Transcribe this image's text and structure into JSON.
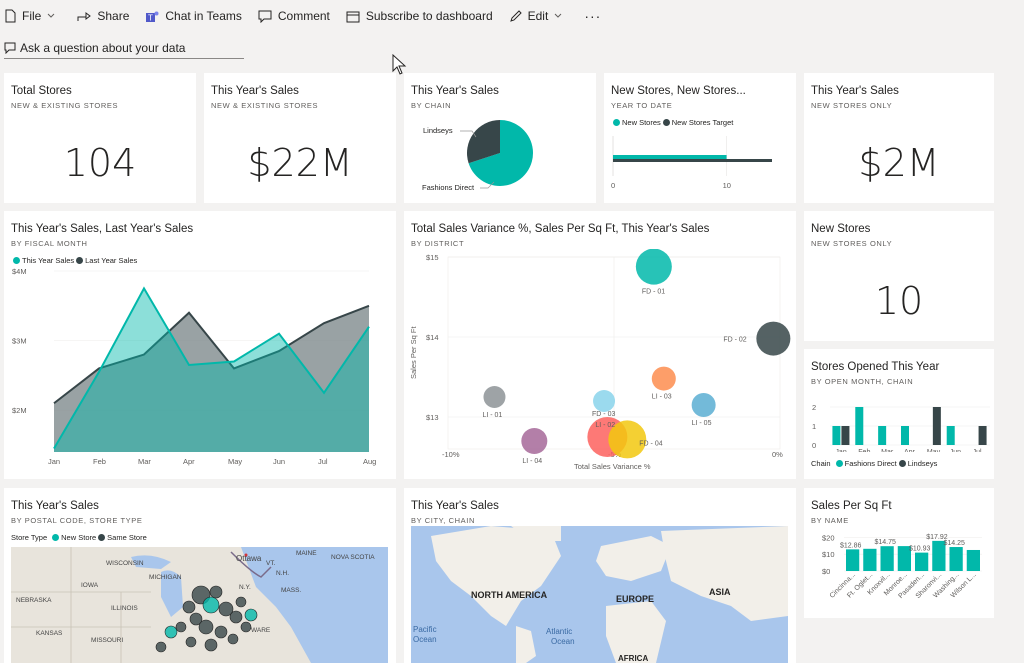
{
  "colors": {
    "teal": "#01b8aa",
    "dark": "#374649",
    "grey": "#8d9397",
    "orange": "#fd8d4f",
    "yellow": "#f2c80f",
    "red": "#fd625e",
    "purple": "#a66999",
    "blue": "#5aaed2",
    "lightblue": "#8ad4eb",
    "ocean": "#a9c6ec"
  },
  "toolbar": {
    "file": "File",
    "share": "Share",
    "teams": "Chat in Teams",
    "comment": "Comment",
    "subscribe": "Subscribe to dashboard",
    "edit": "Edit",
    "more": "···"
  },
  "qa": {
    "placeholder": "Ask a question about your data"
  },
  "tiles": {
    "total_stores": {
      "title": "Total Stores",
      "subtitle": "NEW & EXISTING STORES",
      "value": "104"
    },
    "sales_all": {
      "title": "This Year's Sales",
      "subtitle": "NEW & EXISTING STORES",
      "value": "$22M"
    },
    "sales_chain": {
      "title": "This Year's Sales",
      "subtitle": "BY CHAIN"
    },
    "new_stores_ytd": {
      "title": "New Stores, New Stores...",
      "subtitle": "YEAR TO DATE",
      "legend": [
        "New Stores",
        "New Stores Target"
      ]
    },
    "sales_new": {
      "title": "This Year's Sales",
      "subtitle": "NEW STORES ONLY",
      "value": "$2M"
    },
    "area": {
      "title": "This Year's Sales, Last Year's Sales",
      "subtitle": "BY FISCAL MONTH",
      "legend": [
        "This Year Sales",
        "Last Year Sales"
      ]
    },
    "scatter": {
      "title": "Total Sales Variance %, Sales Per Sq Ft, This Year's Sales",
      "subtitle": "BY DISTRICT"
    },
    "new_stores": {
      "title": "New Stores",
      "subtitle": "NEW STORES ONLY",
      "value": "10"
    },
    "opened": {
      "title": "Stores Opened This Year",
      "subtitle": "BY OPEN MONTH, CHAIN",
      "legend_label": "Chain",
      "legend": [
        "Fashions Direct",
        "Lindseys"
      ]
    },
    "postal": {
      "title": "This Year's Sales",
      "subtitle": "BY POSTAL CODE, STORE TYPE",
      "legend_label": "Store Type",
      "legend": [
        "New Store",
        "Same Store"
      ],
      "labels": [
        "Ottawa",
        "WISCONSIN",
        "MICHIGAN",
        "IOWA",
        "NEBRASKA",
        "ILLINOIS",
        "KANSAS",
        "MISSOURI",
        "N.Y.",
        "VT.",
        "MAINE",
        "N.H.",
        "NOVA SCOTIA",
        "MASS.",
        "WARE"
      ]
    },
    "city": {
      "title": "This Year's Sales",
      "subtitle": "BY CITY, CHAIN",
      "labels": {
        "na": "NORTH AMERICA",
        "eu": "EUROPE",
        "as": "ASIA",
        "po1": "Pacific",
        "po2": "Ocean",
        "ao1": "Atlantic",
        "ao2": "Ocean",
        "af": "AFRICA"
      }
    },
    "sqft": {
      "title": "Sales Per Sq Ft",
      "subtitle": "BY NAME"
    }
  },
  "chart_data": [
    {
      "type": "pie",
      "title": "This Year's Sales",
      "subtitle": "BY CHAIN",
      "categories": [
        "Lindseys",
        "Fashions Direct"
      ],
      "values": [
        30,
        70
      ]
    },
    {
      "type": "bar",
      "title": "New Stores, New Stores...",
      "subtitle": "YEAR TO DATE",
      "series": [
        {
          "name": "New Stores",
          "values": [
            10
          ]
        },
        {
          "name": "New Stores Target",
          "values": [
            14
          ]
        }
      ],
      "xticks": [
        "0",
        "10"
      ],
      "xlim": [
        0,
        14
      ]
    },
    {
      "type": "area",
      "title": "This Year's Sales, Last Year's Sales",
      "subtitle": "BY FISCAL MONTH",
      "categories": [
        "Jan",
        "Feb",
        "Mar",
        "Apr",
        "May",
        "Jun",
        "Jul",
        "Aug"
      ],
      "series": [
        {
          "name": "This Year Sales",
          "values": [
            1.45,
            2.55,
            3.75,
            2.65,
            2.7,
            3.1,
            2.25,
            3.2
          ]
        },
        {
          "name": "Last Year Sales",
          "values": [
            2.1,
            2.6,
            2.8,
            3.4,
            2.6,
            2.85,
            3.25,
            3.5
          ]
        }
      ],
      "yticks": [
        "$2M",
        "$3M",
        "$4M"
      ],
      "ylim": [
        1.4,
        4.0
      ]
    },
    {
      "type": "scatter",
      "title": "Total Sales Variance %, Sales Per Sq Ft, This Year's Sales",
      "subtitle": "BY DISTRICT",
      "xlabel": "Total Sales Variance %",
      "ylabel": "Sales Per Sq Ft",
      "xlim": [
        -10,
        0
      ],
      "ylim": [
        12.6,
        15
      ],
      "xticks": [
        "-10%",
        "-5%",
        "0%"
      ],
      "yticks": [
        "$15",
        "$14",
        "$13"
      ],
      "points": [
        {
          "label": "FD - 01",
          "x": -3.8,
          "y": 14.88,
          "size": 18,
          "color": "#01b8aa"
        },
        {
          "label": "FD - 02",
          "x": -0.2,
          "y": 13.98,
          "size": 17,
          "color": "#374649"
        },
        {
          "label": "LI - 03",
          "x": -3.5,
          "y": 13.48,
          "size": 12,
          "color": "#fd8d4f"
        },
        {
          "label": "LI - 01",
          "x": -8.6,
          "y": 13.25,
          "size": 11,
          "color": "#8d9397"
        },
        {
          "label": "FD - 03",
          "x": -5.3,
          "y": 13.2,
          "size": 11,
          "color": "#8ad4eb"
        },
        {
          "label": "LI - 05",
          "x": -2.3,
          "y": 13.15,
          "size": 12,
          "color": "#5aaed2"
        },
        {
          "label": "LI - 04",
          "x": -7.4,
          "y": 12.7,
          "size": 13,
          "color": "#a66999"
        },
        {
          "label": "LI - 02",
          "x": -5.2,
          "y": 12.75,
          "size": 20,
          "color": "#fd625e"
        },
        {
          "label": "FD - 04",
          "x": -4.6,
          "y": 12.72,
          "size": 19,
          "color": "#f2c80f"
        }
      ]
    },
    {
      "type": "bar",
      "title": "Stores Opened This Year",
      "subtitle": "BY OPEN MONTH, CHAIN",
      "categories": [
        "Jan",
        "Feb",
        "Mar",
        "Apr",
        "May",
        "Jun",
        "Jul"
      ],
      "series": [
        {
          "name": "Fashions Direct",
          "values": [
            1,
            2,
            1,
            1,
            0,
            1,
            0
          ]
        },
        {
          "name": "Lindseys",
          "values": [
            1,
            0,
            0,
            0,
            2,
            0,
            1
          ]
        }
      ],
      "yticks": [
        "0",
        "1",
        "2"
      ],
      "ylim": [
        0,
        2
      ]
    },
    {
      "type": "bar",
      "title": "Sales Per Sq Ft",
      "subtitle": "BY NAME",
      "categories": [
        "Cincinna...",
        "Ft. Oglet...",
        "Knoxvil...",
        "Monroe...",
        "Pasaden...",
        "Sharonvi...",
        "Washing...",
        "Wilson L..."
      ],
      "values": [
        12.86,
        13.2,
        14.75,
        14.8,
        10.93,
        17.92,
        14.25,
        12.5
      ],
      "data_labels": [
        "$12.86",
        "",
        "$14.75",
        "",
        "$10.93",
        "$17.92",
        "$14.25",
        ""
      ],
      "yticks": [
        "$0",
        "$10",
        "$20"
      ],
      "ylim": [
        0,
        22
      ]
    }
  ]
}
